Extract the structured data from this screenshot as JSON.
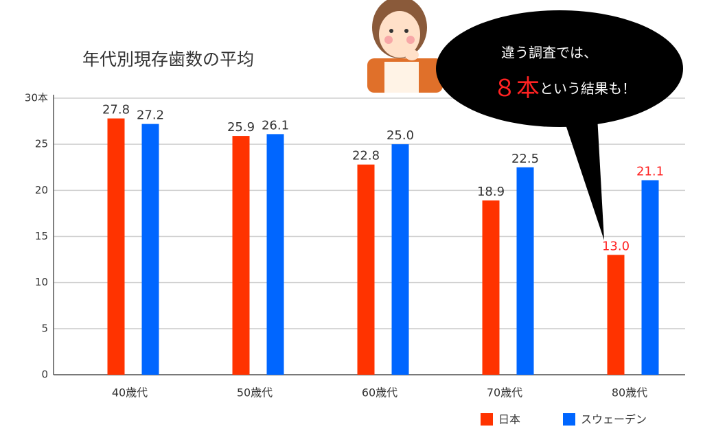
{
  "chart_data": {
    "type": "bar",
    "title": "年代別現存歯数の平均",
    "categories": [
      "40歳代",
      "50歳代",
      "60歳代",
      "70歳代",
      "80歳代"
    ],
    "series": [
      {
        "name": "日本",
        "color": "#ff3300",
        "values": [
          27.8,
          25.9,
          22.8,
          18.9,
          13.0
        ],
        "value_labels": [
          "27.8",
          "25.9",
          "22.8",
          "18.9",
          "13.0"
        ],
        "value_label_colors": [
          "#333333",
          "#333333",
          "#333333",
          "#333333",
          "#ff2222"
        ]
      },
      {
        "name": "スウェーデン",
        "color": "#0066ff",
        "values": [
          27.2,
          26.1,
          25.0,
          22.5,
          21.1
        ],
        "value_labels": [
          "27.2",
          "26.1",
          "25.0",
          "22.5",
          "21.1"
        ],
        "value_label_colors": [
          "#333333",
          "#333333",
          "#333333",
          "#333333",
          "#ff2222"
        ]
      }
    ],
    "ylim": [
      0,
      30
    ],
    "yticks": [
      0,
      5,
      10,
      15,
      20,
      25,
      {
        "value": 30,
        "label": "30本"
      }
    ],
    "grid": true,
    "legend": "bottom-right",
    "annotation": {
      "line1": "違う調査では、",
      "highlight": "８本",
      "line2": "という結果も！",
      "highlight_color": "#ff2222"
    }
  }
}
